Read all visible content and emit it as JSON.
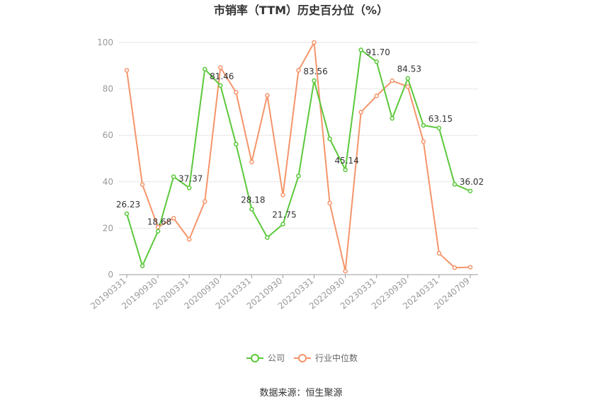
{
  "chart_data": {
    "type": "line",
    "title": "市销率（TTM）历史百分位（%）",
    "source": "数据来源：恒生聚源",
    "ylim": [
      0,
      100
    ],
    "yticks": [
      0,
      20,
      40,
      60,
      80,
      100
    ],
    "x": [
      "20190331",
      "20190630",
      "20190930",
      "20191231",
      "20200331",
      "20200630",
      "20200930",
      "20201231",
      "20210331",
      "20210630",
      "20210930",
      "20211231",
      "20220331",
      "20220630",
      "20220930",
      "20221231",
      "20230331",
      "20230630",
      "20230930",
      "20231231",
      "20240331",
      "20240630",
      "20240709"
    ],
    "xtick_labels": [
      "20190331",
      "20190930",
      "20200331",
      "20200930",
      "20210331",
      "20210930",
      "20220331",
      "20220930",
      "20230331",
      "20230930",
      "20240331",
      "20240709"
    ],
    "grid": true,
    "legend_position": "bottom",
    "series": [
      {
        "name": "公司",
        "color": "#5ac83a",
        "values": [
          26.23,
          3.8,
          18.68,
          42.2,
          37.37,
          88.5,
          81.46,
          56.2,
          28.18,
          16.0,
          21.75,
          42.5,
          83.56,
          58.5,
          45.14,
          96.8,
          91.7,
          67.3,
          84.53,
          64.3,
          63.15,
          38.9,
          36.02
        ],
        "labels": {
          "0": "26.23",
          "2": "18.68",
          "4": "37.37",
          "6": "81.46",
          "8": "28.18",
          "10": "21.75",
          "12": "83.56",
          "14": "45.14",
          "16": "91.70",
          "18": "84.53",
          "20": "63.15",
          "22": "36.02"
        }
      },
      {
        "name": "行业中位数",
        "color": "#f5946a",
        "values": [
          88.0,
          38.8,
          20.5,
          24.3,
          15.2,
          31.5,
          89.2,
          78.5,
          48.5,
          77.2,
          34.3,
          88.0,
          100.0,
          30.8,
          1.5,
          70.0,
          77.0,
          83.5,
          81.0,
          57.3,
          9.2,
          3.0,
          3.2
        ]
      }
    ]
  }
}
